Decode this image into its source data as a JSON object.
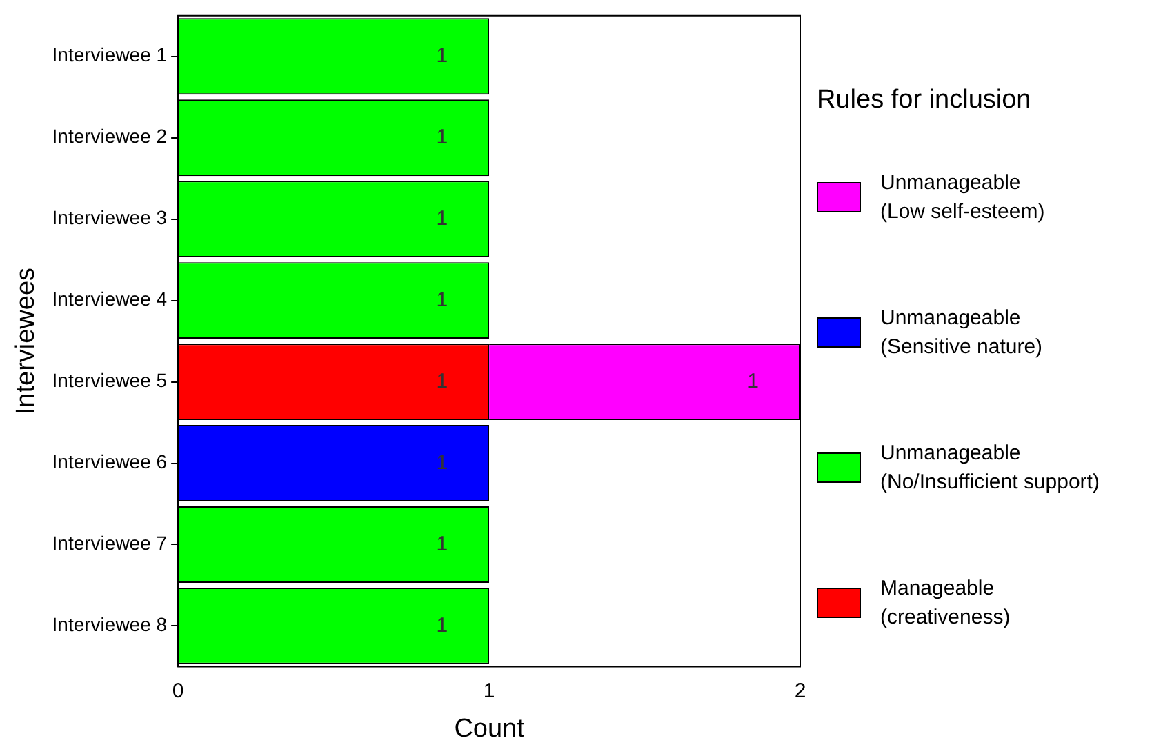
{
  "chart_data": {
    "type": "bar",
    "orientation": "horizontal",
    "stacked": true,
    "xlabel": "Count",
    "ylabel": "Interviewees",
    "legend_title": "Rules for inclusion",
    "legend": "right",
    "grid": false,
    "data_labels": true,
    "xlim": [
      0,
      2
    ],
    "xticks": [
      0,
      1,
      2
    ],
    "categories": [
      "Interviewee 1",
      "Interviewee 2",
      "Interviewee 3",
      "Interviewee 4",
      "Interviewee 5",
      "Interviewee 6",
      "Interviewee 7",
      "Interviewee 8"
    ],
    "series": [
      {
        "name": "Manageable (creativeness)",
        "color": "#ff0000",
        "values": [
          null,
          null,
          null,
          null,
          1,
          null,
          null,
          null
        ]
      },
      {
        "name": "Unmanageable (No/Insufficient support)",
        "color": "#00ff00",
        "values": [
          1,
          1,
          1,
          1,
          null,
          null,
          1,
          1
        ]
      },
      {
        "name": "Unmanageable (Sensitive nature)",
        "color": "#0000ff",
        "values": [
          null,
          null,
          null,
          null,
          null,
          1,
          null,
          null
        ]
      },
      {
        "name": "Unmanageable (Low self-esteem)",
        "color": "#ff00ff",
        "values": [
          null,
          null,
          null,
          null,
          1,
          null,
          null,
          null
        ]
      }
    ]
  }
}
